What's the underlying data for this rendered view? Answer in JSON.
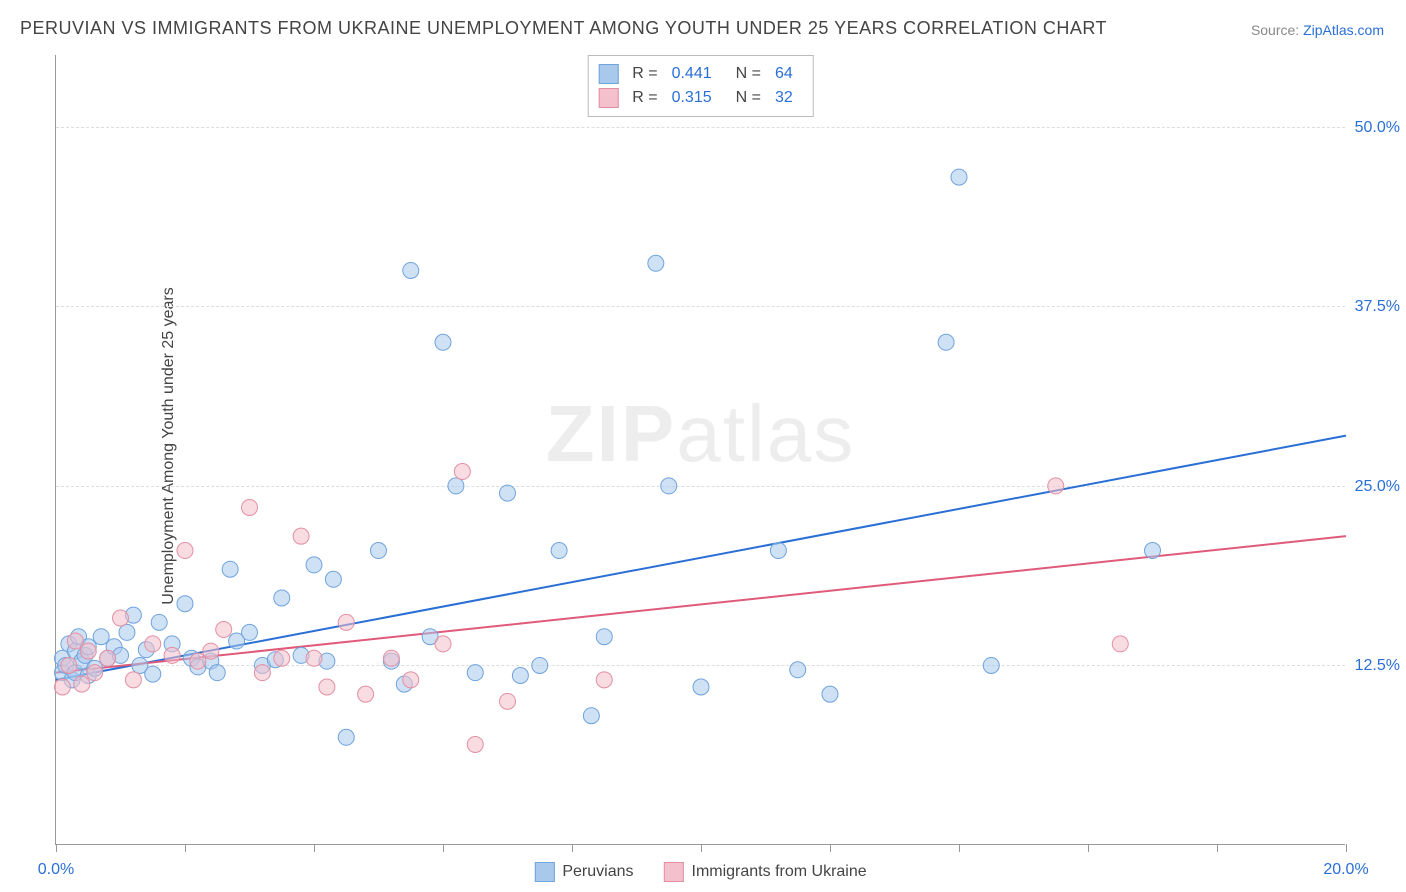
{
  "title": "PERUVIAN VS IMMIGRANTS FROM UKRAINE UNEMPLOYMENT AMONG YOUTH UNDER 25 YEARS CORRELATION CHART",
  "source_prefix": "Source: ",
  "source_link": "ZipAtlas.com",
  "y_axis_label": "Unemployment Among Youth under 25 years",
  "watermark_bold": "ZIP",
  "watermark_light": "atlas",
  "chart": {
    "type": "scatter",
    "xlim": [
      0,
      20
    ],
    "ylim": [
      0,
      55
    ],
    "x_ticks": [
      0,
      2,
      4,
      6,
      8,
      10,
      12,
      14,
      16,
      18,
      20
    ],
    "x_tick_labels": {
      "0": "0.0%",
      "20": "20.0%"
    },
    "y_gridlines": [
      12.5,
      25.0,
      37.5,
      50.0
    ],
    "y_tick_labels": [
      "12.5%",
      "25.0%",
      "37.5%",
      "50.0%"
    ],
    "background_color": "#ffffff",
    "grid_color": "#dddddd",
    "axis_color": "#999999",
    "tick_label_color": "#2a6fd6",
    "label_fontsize": 16,
    "title_fontsize": 18,
    "marker_radius": 8,
    "marker_opacity": 0.55,
    "line_width": 2,
    "series": [
      {
        "name": "Peruvians",
        "fill_color": "#a8c8ec",
        "stroke_color": "#6fa3dd",
        "line_color": "#2a6fd6",
        "R": "0.441",
        "N": "64",
        "trend": {
          "x1": 0,
          "y1": 11.5,
          "x2": 20,
          "y2": 28.5
        },
        "points": [
          [
            0.1,
            12.0
          ],
          [
            0.1,
            13.0
          ],
          [
            0.15,
            12.5
          ],
          [
            0.2,
            14.0
          ],
          [
            0.25,
            11.5
          ],
          [
            0.3,
            13.5
          ],
          [
            0.3,
            12.0
          ],
          [
            0.35,
            14.5
          ],
          [
            0.4,
            12.8
          ],
          [
            0.45,
            13.2
          ],
          [
            0.5,
            13.8
          ],
          [
            0.5,
            11.8
          ],
          [
            0.6,
            12.3
          ],
          [
            0.7,
            14.5
          ],
          [
            0.8,
            13.0
          ],
          [
            0.9,
            13.8
          ],
          [
            1.0,
            13.2
          ],
          [
            1.1,
            14.8
          ],
          [
            1.2,
            16.0
          ],
          [
            1.3,
            12.5
          ],
          [
            1.4,
            13.6
          ],
          [
            1.5,
            11.9
          ],
          [
            1.6,
            15.5
          ],
          [
            1.8,
            14.0
          ],
          [
            2.0,
            16.8
          ],
          [
            2.1,
            13.0
          ],
          [
            2.2,
            12.4
          ],
          [
            2.4,
            12.8
          ],
          [
            2.5,
            12.0
          ],
          [
            2.7,
            19.2
          ],
          [
            2.8,
            14.2
          ],
          [
            3.0,
            14.8
          ],
          [
            3.2,
            12.5
          ],
          [
            3.4,
            12.9
          ],
          [
            3.5,
            17.2
          ],
          [
            3.8,
            13.2
          ],
          [
            4.0,
            19.5
          ],
          [
            4.2,
            12.8
          ],
          [
            4.3,
            18.5
          ],
          [
            4.5,
            7.5
          ],
          [
            5.0,
            20.5
          ],
          [
            5.2,
            12.8
          ],
          [
            5.4,
            11.2
          ],
          [
            5.5,
            40.0
          ],
          [
            5.8,
            14.5
          ],
          [
            6.0,
            35.0
          ],
          [
            6.2,
            25.0
          ],
          [
            6.5,
            12.0
          ],
          [
            7.0,
            24.5
          ],
          [
            7.2,
            11.8
          ],
          [
            7.5,
            12.5
          ],
          [
            7.8,
            20.5
          ],
          [
            8.3,
            9.0
          ],
          [
            8.5,
            14.5
          ],
          [
            9.3,
            40.5
          ],
          [
            9.5,
            25.0
          ],
          [
            10.0,
            11.0
          ],
          [
            11.2,
            20.5
          ],
          [
            11.5,
            12.2
          ],
          [
            12.0,
            10.5
          ],
          [
            13.8,
            35.0
          ],
          [
            14.0,
            46.5
          ],
          [
            14.5,
            12.5
          ],
          [
            17.0,
            20.5
          ]
        ]
      },
      {
        "name": "Immigrants from Ukraine",
        "fill_color": "#f4c0cb",
        "stroke_color": "#e38fa3",
        "line_color": "#e05a7a",
        "R": "0.315",
        "N": "32",
        "trend": {
          "x1": 0,
          "y1": 12.0,
          "x2": 20,
          "y2": 21.5
        },
        "points": [
          [
            0.1,
            11.0
          ],
          [
            0.2,
            12.5
          ],
          [
            0.3,
            14.2
          ],
          [
            0.4,
            11.2
          ],
          [
            0.5,
            13.5
          ],
          [
            0.6,
            12.0
          ],
          [
            0.8,
            13.0
          ],
          [
            1.0,
            15.8
          ],
          [
            1.2,
            11.5
          ],
          [
            1.5,
            14.0
          ],
          [
            1.8,
            13.2
          ],
          [
            2.0,
            20.5
          ],
          [
            2.2,
            12.8
          ],
          [
            2.4,
            13.5
          ],
          [
            2.6,
            15.0
          ],
          [
            3.0,
            23.5
          ],
          [
            3.2,
            12.0
          ],
          [
            3.5,
            13.0
          ],
          [
            3.8,
            21.5
          ],
          [
            4.0,
            13.0
          ],
          [
            4.2,
            11.0
          ],
          [
            4.5,
            15.5
          ],
          [
            4.8,
            10.5
          ],
          [
            5.2,
            13.0
          ],
          [
            5.5,
            11.5
          ],
          [
            6.0,
            14.0
          ],
          [
            6.3,
            26.0
          ],
          [
            6.5,
            7.0
          ],
          [
            7.0,
            10.0
          ],
          [
            8.5,
            11.5
          ],
          [
            15.5,
            25.0
          ],
          [
            16.5,
            14.0
          ]
        ]
      }
    ],
    "legend_bottom": [
      "Peruvians",
      "Immigrants from Ukraine"
    ]
  }
}
